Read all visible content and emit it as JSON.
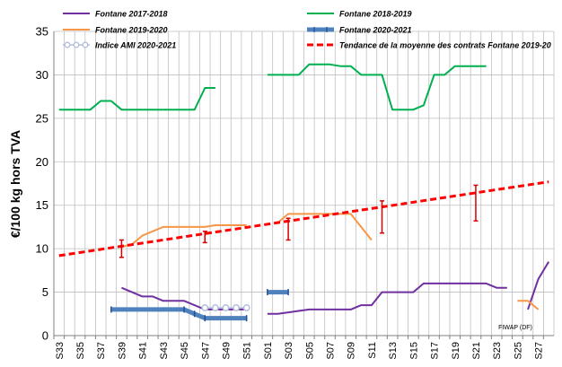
{
  "chart_data": {
    "type": "line",
    "ylabel": "€/100 kg hors TVA",
    "ylim": [
      0,
      35
    ],
    "yticks": [
      0,
      5,
      10,
      15,
      20,
      25,
      30,
      35
    ],
    "grid": true,
    "legend_position": "top",
    "credit": "FIWAP (DF)",
    "categories": [
      "S33",
      "S34",
      "S35",
      "S36",
      "S37",
      "S38",
      "S39",
      "S40",
      "S41",
      "S42",
      "S43",
      "S44",
      "S45",
      "S46",
      "S47",
      "S48",
      "S49",
      "S50",
      "S51",
      "S52",
      "S01",
      "S02",
      "S03",
      "S04",
      "S05",
      "S06",
      "S07",
      "S08",
      "S09",
      "S10",
      "S11",
      "S12",
      "S13",
      "S14",
      "S15",
      "S16",
      "S17",
      "S18",
      "S19",
      "S20",
      "S21",
      "S22",
      "S23",
      "S24",
      "S25",
      "S26",
      "S27",
      "S28"
    ],
    "tick_labels": [
      "S33",
      "S35",
      "S37",
      "S39",
      "S41",
      "S43",
      "S45",
      "S47",
      "S49",
      "S51",
      "S01",
      "S03",
      "S05",
      "S07",
      "S09",
      "S11",
      "S13",
      "S15",
      "S17",
      "S19",
      "S21",
      "S23",
      "S25",
      "S27"
    ],
    "series": [
      {
        "name": "Fontane 2017-2018",
        "color": "#7030a0",
        "width": 2,
        "style": "solid",
        "points": [
          [
            "S39",
            5.5
          ],
          [
            "S41",
            4.5
          ],
          [
            "S42",
            4.5
          ],
          [
            "S43",
            4
          ],
          [
            "S45",
            4
          ],
          [
            "S47",
            3
          ],
          [
            "S51",
            3
          ],
          null,
          [
            "S01",
            2.5
          ],
          [
            "S02",
            2.5
          ],
          [
            "S05",
            3
          ],
          [
            "S09",
            3
          ],
          [
            "S10",
            3.5
          ],
          [
            "S11",
            3.5
          ],
          [
            "S12",
            5
          ],
          [
            "S15",
            5
          ],
          [
            "S16",
            6
          ],
          [
            "S22",
            6
          ],
          [
            "S23",
            5.5
          ],
          [
            "S24",
            5.5
          ],
          null,
          [
            "S26",
            3
          ],
          [
            "S27",
            6.5
          ],
          [
            "S28",
            8.5
          ]
        ]
      },
      {
        "name": "Fontane 2018-2019",
        "color": "#00b050",
        "width": 2,
        "style": "solid",
        "points": [
          [
            "S33",
            26
          ],
          [
            "S36",
            26
          ],
          [
            "S37",
            27
          ],
          [
            "S38",
            27
          ],
          [
            "S39",
            26
          ],
          [
            "S46",
            26
          ],
          [
            "S47",
            28.5
          ],
          [
            "S48",
            28.5
          ],
          null,
          [
            "S01",
            30
          ],
          [
            "S04",
            30
          ],
          [
            "S05",
            31.2
          ],
          [
            "S07",
            31.2
          ],
          [
            "S08",
            31
          ],
          [
            "S09",
            31
          ],
          [
            "S10",
            30
          ],
          [
            "S12",
            30
          ],
          [
            "S13",
            26
          ],
          [
            "S15",
            26
          ],
          [
            "S16",
            26.5
          ],
          [
            "S17",
            30
          ],
          [
            "S18",
            30
          ],
          [
            "S19",
            31
          ],
          [
            "S22",
            31
          ]
        ]
      },
      {
        "name": "Fontane 2019-2020",
        "color": "#f79646",
        "width": 2,
        "style": "solid",
        "points": [
          [
            "S39",
            10.2
          ],
          [
            "S40",
            10.5
          ],
          [
            "S41",
            11.5
          ],
          [
            "S43",
            12.5
          ],
          [
            "S47",
            12.5
          ],
          [
            "S48",
            12.7
          ],
          [
            "S51",
            12.7
          ],
          null,
          [
            "S02",
            13
          ],
          [
            "S03",
            14
          ],
          [
            "S08",
            14
          ],
          [
            "S09",
            14
          ],
          [
            "S11",
            11
          ],
          null,
          [
            "S25",
            4
          ],
          [
            "S26",
            4
          ],
          [
            "S27",
            3
          ]
        ]
      },
      {
        "name": "Fontane 2020-2021",
        "color": "#4f81bd",
        "width": 5,
        "style": "solid",
        "marker": "tick",
        "points": [
          [
            "S38",
            3
          ],
          [
            "S45",
            3
          ],
          [
            "S46",
            2.5
          ],
          [
            "S47",
            2
          ],
          [
            "S51",
            2
          ],
          null,
          [
            "S01",
            5
          ],
          [
            "S03",
            5
          ]
        ]
      },
      {
        "name": "Indice AMI 2020-2021",
        "color": "#b4bedf",
        "width": 1.5,
        "style": "solid",
        "marker": "circle",
        "points": [
          [
            "S47",
            3.2
          ],
          [
            "S48",
            3.2
          ],
          [
            "S49",
            3.2
          ],
          [
            "S50",
            3.2
          ],
          [
            "S51",
            3.2
          ]
        ]
      },
      {
        "name": "Tendance de la moyenne des contrats Fontane 2019-20",
        "color": "#ff0000",
        "width": 3,
        "style": "dashed",
        "points": [
          [
            "S33",
            9.2
          ],
          [
            "S28",
            17.7
          ]
        ]
      }
    ],
    "error_bars": {
      "color": "#d40000",
      "bars": [
        {
          "x": "S39",
          "center": 10.2,
          "low": 9,
          "high": 11
        },
        {
          "x": "S47",
          "center": 11.5,
          "low": 10.7,
          "high": 12
        },
        {
          "x": "S03",
          "center": 13,
          "low": 11,
          "high": 13.5
        },
        {
          "x": "S12",
          "center": 14.6,
          "low": 11.8,
          "high": 15.5
        },
        {
          "x": "S21",
          "center": 16,
          "low": 13.2,
          "high": 17.3
        }
      ]
    }
  }
}
